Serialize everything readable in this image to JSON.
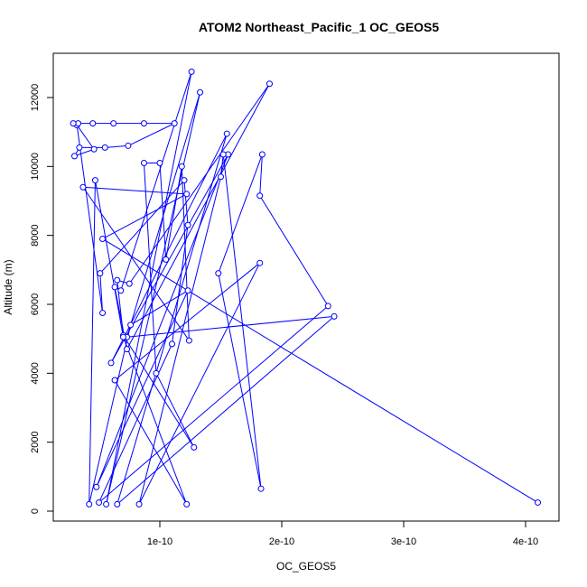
{
  "chart_data": {
    "type": "line",
    "title": "ATOM2 Northeast_Pacific_1 OC_GEOS5",
    "xlabel": "OC_GEOS5",
    "ylabel": "Altitude (m)",
    "xlim": [
      2e-11,
      4.2e-10
    ],
    "ylim": [
      -300,
      13000
    ],
    "x_ticks": [
      1e-10,
      2e-10,
      3e-10,
      4e-10
    ],
    "x_tick_labels": [
      "1e-10",
      "2e-10",
      "3e-10",
      "4e-10"
    ],
    "y_ticks": [
      0,
      2000,
      4000,
      6000,
      8000,
      10000,
      12000
    ],
    "y_tick_labels": [
      "0",
      "2000",
      "4000",
      "6000",
      "8000",
      "10000",
      "12000"
    ],
    "grid": false,
    "series": [
      {
        "color": "#0000ff",
        "marker": "open-circle",
        "points": [
          [
            4.1e-10,
            250
          ],
          [
            5.3e-11,
            7900
          ],
          [
            1.22e-10,
            9200
          ],
          [
            3.7e-11,
            9400
          ],
          [
            1.24e-10,
            4950
          ],
          [
            1.18e-10,
            10000
          ],
          [
            1.05e-10,
            7300
          ],
          [
            1e-10,
            10100
          ],
          [
            8.7e-11,
            10100
          ],
          [
            9.7e-11,
            4000
          ],
          [
            1.28e-10,
            1850
          ],
          [
            7e-11,
            5100
          ],
          [
            6.5e-11,
            6700
          ],
          [
            7.5e-11,
            6600
          ],
          [
            1.9e-10,
            12400
          ],
          [
            7.3e-11,
            4700
          ],
          [
            6.3e-11,
            6500
          ],
          [
            6.8e-11,
            6400
          ],
          [
            1.26e-10,
            12750
          ],
          [
            5.6e-11,
            200
          ],
          [
            1.33e-10,
            12150
          ],
          [
            7.3e-11,
            5050
          ],
          [
            2.43e-10,
            5650
          ],
          [
            6.5e-11,
            200
          ],
          [
            1.55e-10,
            10950
          ],
          [
            6e-11,
            4300
          ],
          [
            1.56e-10,
            10350
          ],
          [
            4.8e-11,
            700
          ],
          [
            1.23e-10,
            6400
          ],
          [
            7.6e-11,
            5400
          ],
          [
            4.2e-11,
            200
          ],
          [
            4.7e-11,
            9600
          ],
          [
            7e-11,
            5050
          ],
          [
            1.22e-10,
            200
          ],
          [
            6.3e-11,
            3800
          ],
          [
            1.82e-10,
            7200
          ],
          [
            8.3e-11,
            200
          ],
          [
            1.5e-10,
            9700
          ],
          [
            1.52e-10,
            10350
          ],
          [
            1.83e-10,
            650
          ],
          [
            1.48e-10,
            6900
          ],
          [
            1.84e-10,
            10350
          ],
          [
            1.82e-10,
            9150
          ],
          [
            2.38e-10,
            5950
          ],
          [
            5e-11,
            250
          ],
          [
            1.1e-10,
            4850
          ],
          [
            1.23e-10,
            8300
          ],
          [
            1.2e-10,
            9600
          ],
          [
            5.1e-11,
            6900
          ],
          [
            5.3e-11,
            5750
          ],
          [
            3.2e-11,
            11200
          ],
          [
            4.6e-11,
            10500
          ],
          [
            3e-11,
            10300
          ],
          [
            3.4e-11,
            10550
          ],
          [
            5.5e-11,
            10550
          ],
          [
            7.4e-11,
            10600
          ],
          [
            1.12e-10,
            11250
          ],
          [
            8.7e-11,
            11250
          ],
          [
            6.2e-11,
            11250
          ],
          [
            4.5e-11,
            11250
          ],
          [
            3.3e-11,
            11250
          ],
          [
            2.9e-11,
            11250
          ]
        ]
      }
    ]
  }
}
